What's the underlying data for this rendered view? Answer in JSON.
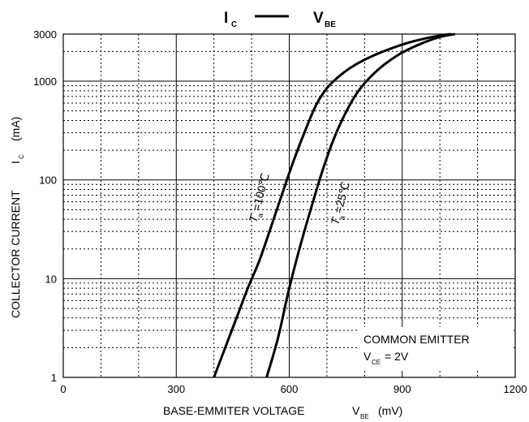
{
  "chart_data": {
    "type": "line",
    "title": "I",
    "title_sub": "C",
    "title_right": "V",
    "title_right_sub": "BE",
    "xlabel": "BASE-EMMITER VOLTAGE",
    "xlabel_symbol": "V",
    "xlabel_sub": "BE",
    "xlabel_unit": "(mV)",
    "ylabel": "COLLECTOR CURRENT",
    "ylabel_symbol": "I",
    "ylabel_sub": "C",
    "ylabel_unit": "(mA)",
    "xlim": [
      0,
      1200
    ],
    "ylim": [
      1,
      3000
    ],
    "yscale": "log",
    "xticks": [
      0,
      300,
      600,
      900,
      1200
    ],
    "xtick_labels": [
      "0",
      "300",
      "600",
      "900",
      "1200"
    ],
    "yticks": [
      1,
      10,
      100,
      1000,
      3000
    ],
    "ytick_labels": [
      "1",
      "10",
      "100",
      "1000",
      "3000"
    ],
    "grid": true,
    "series": [
      {
        "name": "Ta=100℃",
        "label_prefix": "T",
        "label_sub": "a",
        "label_suffix": "=100℃",
        "x": [
          400,
          430,
          460,
          490,
          520,
          550,
          580,
          610,
          640,
          670,
          700,
          730,
          760,
          800,
          850,
          900,
          950,
          1000,
          1030
        ],
        "y": [
          1,
          2,
          4,
          8,
          15,
          32,
          70,
          150,
          300,
          560,
          850,
          1100,
          1350,
          1650,
          2000,
          2350,
          2650,
          2900,
          3000
        ]
      },
      {
        "name": "Ta=25℃",
        "label_prefix": "T",
        "label_sub": "a",
        "label_suffix": "=25℃",
        "x": [
          540,
          570,
          600,
          630,
          660,
          690,
          720,
          750,
          780,
          810,
          840,
          870,
          900,
          950,
          1000,
          1040
        ],
        "y": [
          1,
          2.5,
          8,
          22,
          55,
          130,
          270,
          480,
          760,
          1050,
          1350,
          1650,
          1950,
          2400,
          2800,
          3000
        ]
      }
    ],
    "annotation": {
      "line1": "COMMON EMITTER",
      "symbol": "V",
      "sub": "CE",
      "value": "= 2V"
    }
  }
}
